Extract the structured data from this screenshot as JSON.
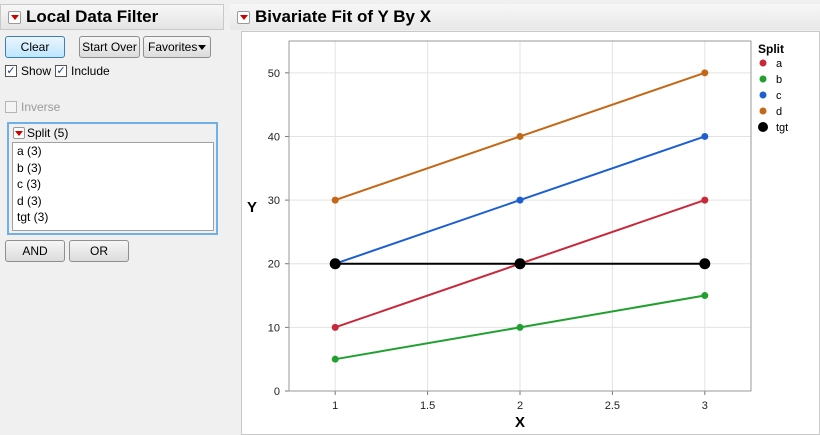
{
  "filter": {
    "title": "Local Data Filter",
    "buttons": {
      "clear": "Clear",
      "start_over": "Start Over",
      "favorites": "Favorites"
    },
    "show_label": "Show",
    "include_label": "Include",
    "inverse_label": "Inverse",
    "column_header": "Split (5)",
    "items": [
      "a (3)",
      "b (3)",
      "c (3)",
      "d (3)",
      "tgt (3)"
    ],
    "and_label": "AND",
    "or_label": "OR"
  },
  "report": {
    "title": "Bivariate Fit of Y By X"
  },
  "legend": {
    "title": "Split",
    "entries": [
      {
        "label": "a",
        "color": "#c8283a"
      },
      {
        "label": "b",
        "color": "#21a02f"
      },
      {
        "label": "c",
        "color": "#1d5fd0"
      },
      {
        "label": "d",
        "color": "#c46716"
      },
      {
        "label": "tgt",
        "color": "#000000"
      }
    ]
  },
  "chart_data": {
    "type": "line",
    "xlabel": "X",
    "ylabel": "Y",
    "xlim": [
      0.75,
      3.25
    ],
    "ylim": [
      0,
      55
    ],
    "xticks": [
      1,
      1.5,
      2,
      2.5,
      3
    ],
    "xtick_labels": [
      "1",
      "1.5",
      "2",
      "2.5",
      "3"
    ],
    "yticks": [
      0,
      10,
      20,
      30,
      40,
      50
    ],
    "ytick_labels": [
      "0",
      "10",
      "20",
      "30",
      "40",
      "50"
    ],
    "grid": true,
    "x": [
      1,
      2,
      3
    ],
    "series": [
      {
        "name": "a",
        "values": [
          10,
          20,
          30
        ],
        "color": "#c8283a"
      },
      {
        "name": "b",
        "values": [
          5,
          10,
          15
        ],
        "color": "#21a02f"
      },
      {
        "name": "c",
        "values": [
          20,
          30,
          40
        ],
        "color": "#1d5fd0"
      },
      {
        "name": "d",
        "values": [
          30,
          40,
          50
        ],
        "color": "#c46716"
      },
      {
        "name": "tgt",
        "values": [
          20,
          20,
          20
        ],
        "color": "#000000"
      }
    ]
  }
}
